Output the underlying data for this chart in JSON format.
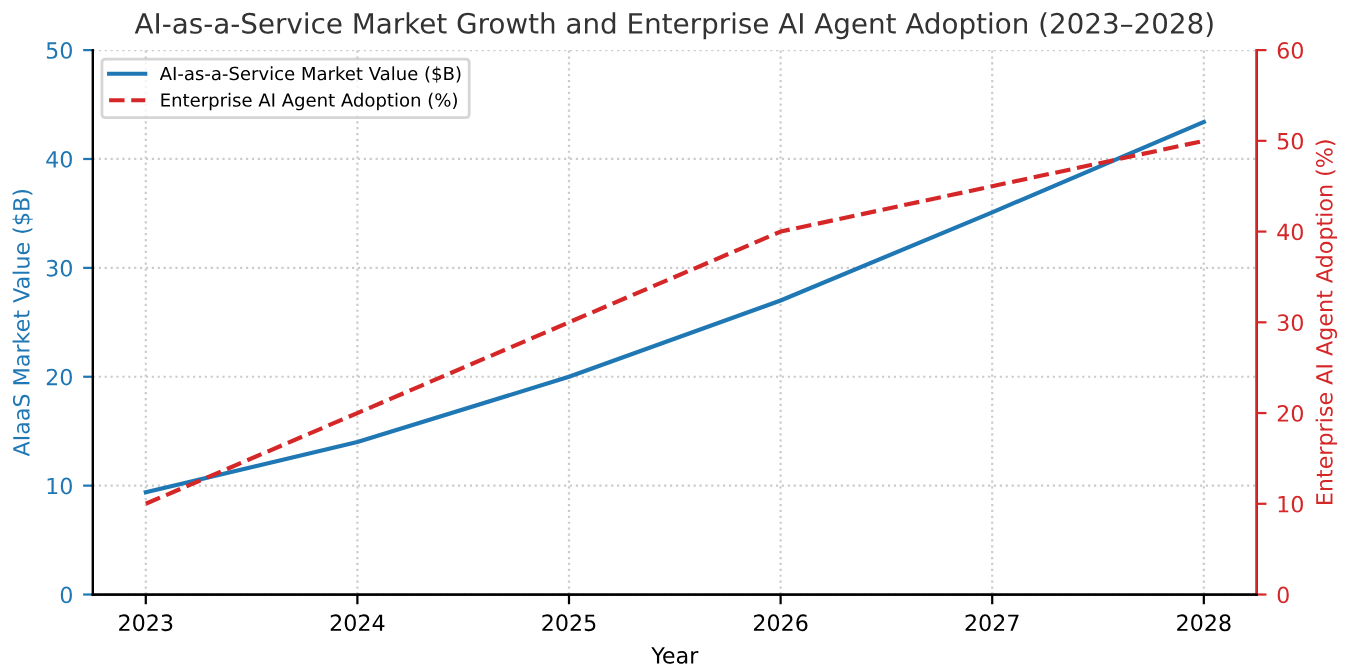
{
  "chart_data": {
    "type": "line",
    "title": "AI-as-a-Service Market Growth and Enterprise AI Agent Adoption (2023–2028)",
    "xlabel": "Year",
    "ylabel": "AIaaS Market Value ($B)",
    "y2label": "Enterprise AI Agent Adoption (%)",
    "x": [
      2023,
      2024,
      2025,
      2026,
      2027,
      2028
    ],
    "series": [
      {
        "name": "AI-as-a-Service Market Value ($B)",
        "color": "#1f77b4",
        "values": [
          9.4,
          14.0,
          20.0,
          27.0,
          35.1,
          43.4
        ],
        "line_style": "solid"
      },
      {
        "name": "Enterprise AI Agent Adoption (%)",
        "color": "#d62728",
        "values": [
          10,
          20,
          30,
          40,
          45,
          50
        ],
        "axis": "y2",
        "line_style": "dashed"
      }
    ],
    "xlim": [
      2022.75,
      2028.25
    ],
    "xticks": [
      2023,
      2024,
      2025,
      2026,
      2027,
      2028
    ],
    "ylim": [
      0,
      50
    ],
    "yticks": [
      0,
      10,
      20,
      30,
      40,
      50
    ],
    "y2lim": [
      0,
      60
    ],
    "y2ticks": [
      0,
      10,
      20,
      30,
      40,
      50,
      60
    ],
    "grid": true,
    "legend": "top left",
    "marker": "none"
  }
}
